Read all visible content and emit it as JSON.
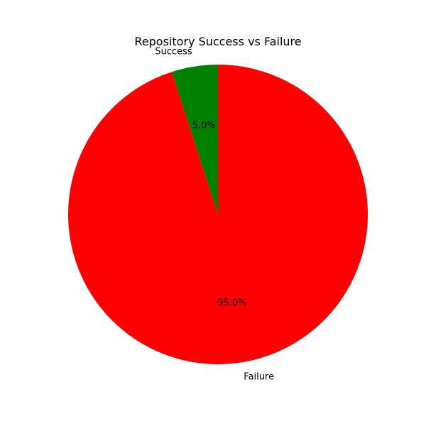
{
  "chart_data": {
    "type": "pie",
    "title": "Repository Success vs Failure",
    "categories": [
      "Success",
      "Failure"
    ],
    "values": [
      5.0,
      95.0
    ],
    "percent_labels": [
      "5.0%",
      "95.0%"
    ],
    "colors": [
      "#008000",
      "#ff0000"
    ],
    "start_angle_deg": 90,
    "direction": "counterclockwise",
    "legend": "none"
  }
}
